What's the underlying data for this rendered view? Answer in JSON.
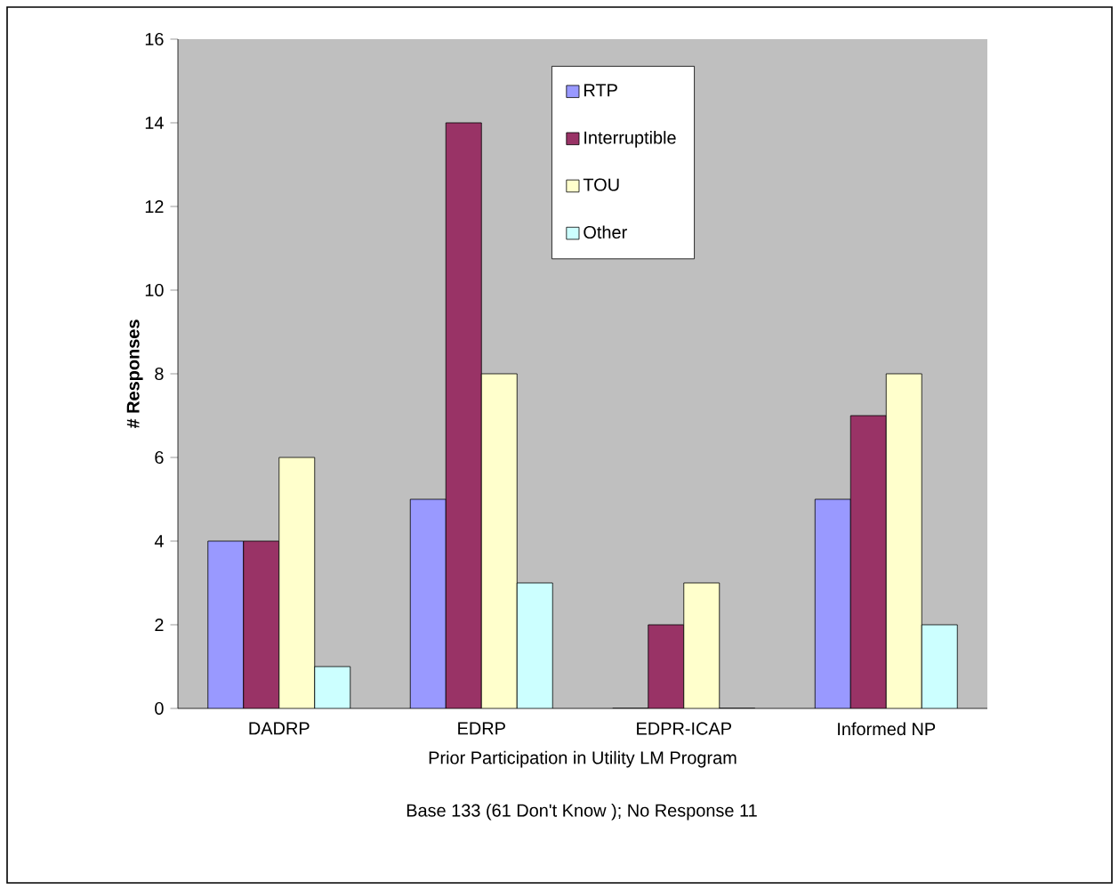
{
  "chart_data": {
    "type": "bar",
    "xlabel": "Prior Participation in Utility LM Program",
    "ylabel": "# Responses",
    "categories": [
      "DADRP",
      "EDRP",
      "EDPR-ICAP",
      "Informed NP"
    ],
    "series": [
      {
        "name": "RTP",
        "color": "#9999ff",
        "values": [
          4,
          5,
          0,
          5
        ]
      },
      {
        "name": "Interruptible",
        "color": "#993366",
        "values": [
          4,
          14,
          2,
          7
        ]
      },
      {
        "name": "TOU",
        "color": "#ffffcc",
        "values": [
          6,
          8,
          3,
          8
        ]
      },
      {
        "name": "Other",
        "color": "#ccffff",
        "values": [
          1,
          3,
          0,
          2
        ]
      }
    ],
    "ylim": [
      0,
      16
    ],
    "yticks": [
      0,
      2,
      4,
      6,
      8,
      10,
      12,
      14,
      16
    ],
    "legend": "top",
    "annotations": [
      "Base 133 (61 Don't Know ); No Response 11"
    ]
  }
}
